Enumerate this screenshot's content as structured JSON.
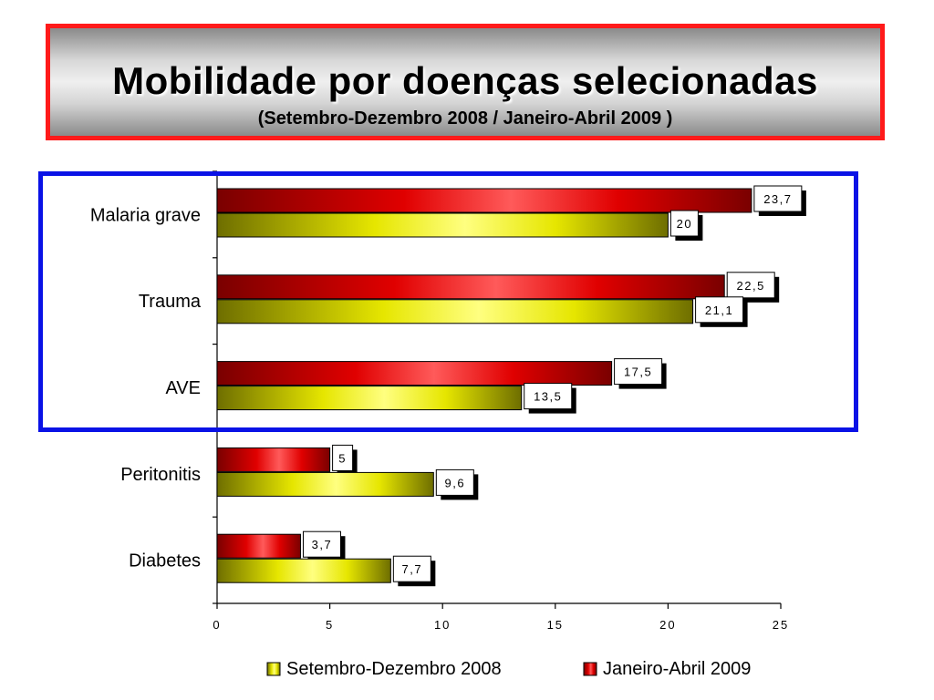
{
  "header": {
    "title": "Mobilidade por doenças selecionadas",
    "subtitle": "(Setembro-Dezembro 2008 / Janeiro-Abril 2009 )"
  },
  "colors": {
    "title_border": "#ff1a1a",
    "highlight_border": "#0a12e6",
    "series_sep_dez": "#c8c800",
    "series_jan_abr": "#e00000"
  },
  "chart_data": {
    "type": "bar",
    "orientation": "horizontal",
    "categories": [
      "Malaria grave",
      "Trauma",
      "AVE",
      "Peritonitis",
      "Diabetes"
    ],
    "series": [
      {
        "name": "Janeiro-Abril 2009",
        "values": [
          23.7,
          22.5,
          17.5,
          5,
          3.7
        ],
        "labels": [
          "23,7",
          "22,5",
          "17,5",
          "5",
          "3,7"
        ]
      },
      {
        "name": "Setembro-Dezembro 2008",
        "values": [
          20,
          21.1,
          13.5,
          9.6,
          7.7
        ],
        "labels": [
          "20",
          "21,1",
          "13,5",
          "9,6",
          "7,7"
        ]
      }
    ],
    "xlim": [
      0,
      25
    ],
    "xticks": [
      0,
      5,
      10,
      15,
      20,
      25
    ],
    "xtick_labels": [
      "0",
      "5",
      "10",
      "15",
      "20",
      "25"
    ],
    "legend": [
      "Setembro-Dezembro 2008",
      "Janeiro-Abril 2009"
    ],
    "legend_position": "bottom",
    "grid": false,
    "highlighted_categories": [
      "Malaria grave",
      "Trauma",
      "AVE"
    ]
  }
}
